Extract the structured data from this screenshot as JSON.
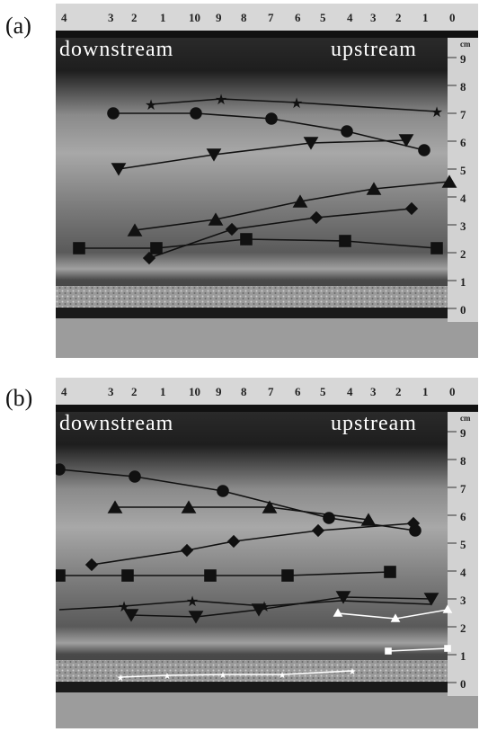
{
  "panels": [
    {
      "label": "(a)",
      "downstream_label": "downstream",
      "upstream_label": "upstream",
      "top_ruler_numbers": [
        "4",
        "3",
        "2",
        "1",
        "10",
        "9",
        "8",
        "7",
        "6",
        "5",
        "4",
        "3",
        "2",
        "1",
        "0"
      ],
      "side_ruler_numbers": [
        "9",
        "8",
        "7",
        "6",
        "5",
        "4",
        "3",
        "2",
        "1",
        "0"
      ],
      "side_ruler_unit_marker": "cm"
    },
    {
      "label": "(b)",
      "downstream_label": "downstream",
      "upstream_label": "upstream",
      "top_ruler_numbers": [
        "4",
        "3",
        "2",
        "1",
        "10",
        "9",
        "8",
        "7",
        "6",
        "5",
        "4",
        "3",
        "2",
        "1",
        "0"
      ],
      "side_ruler_numbers": [
        "9",
        "8",
        "7",
        "6",
        "5",
        "4",
        "3",
        "2",
        "1",
        "0"
      ],
      "side_ruler_unit_marker": "cm"
    }
  ],
  "marker_colors": {
    "black": "#111111",
    "white": "#ffffff"
  }
}
